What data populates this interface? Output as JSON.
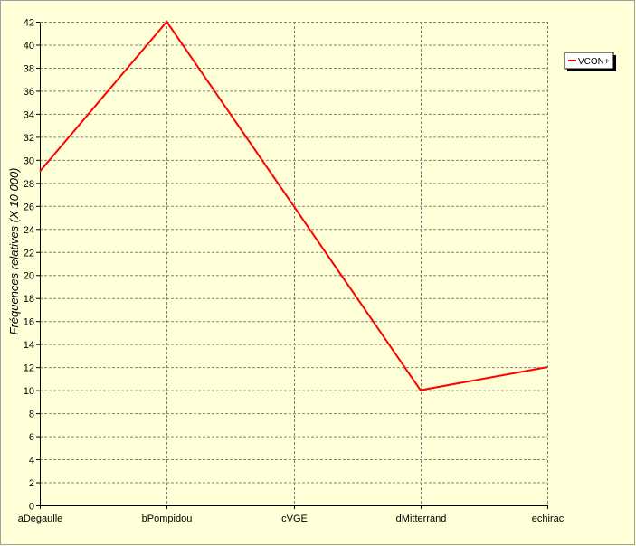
{
  "chart_data": {
    "type": "line",
    "categories": [
      "aDegaulle",
      "bPompidou",
      "cVGE",
      "dMitterrand",
      "echirac"
    ],
    "series": [
      {
        "name": "VCON+",
        "values": [
          29,
          42,
          26,
          10,
          12
        ],
        "color": "#ff0000"
      }
    ],
    "ylabel": "Fréquences relatives (X 10 000)",
    "xlabel": "",
    "ylim": [
      0,
      42
    ],
    "ytick_step": 2,
    "grid": true,
    "legend_position": "right",
    "colors": {
      "background": "#ffffd8",
      "grid": "#808080",
      "axis": "#000000"
    }
  }
}
